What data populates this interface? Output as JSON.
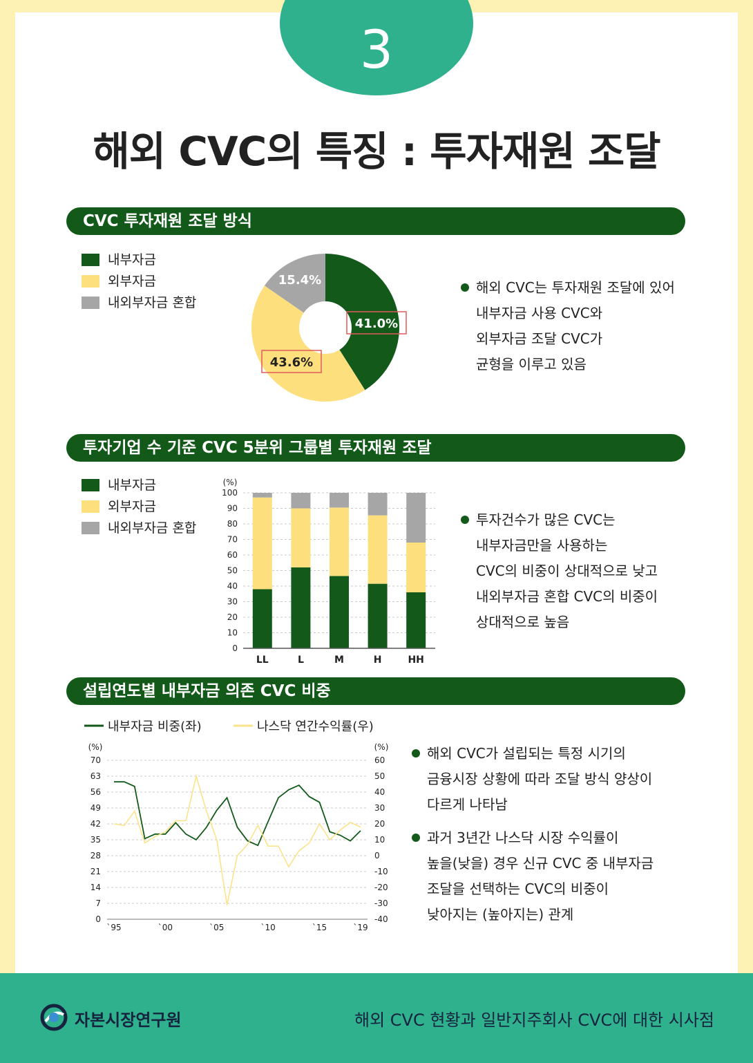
{
  "header": {
    "number": "3",
    "title": "해외 CVC의 특징 : 투자재원 조달"
  },
  "section1": {
    "title": "CVC 투자재원 조달 방식",
    "bullet": [
      "해외 CVC는 투자재원 조달에 있어",
      "내부자금 사용 CVC와",
      "외부자금 조달 CVC가",
      "균형을 이루고 있음"
    ]
  },
  "section2": {
    "title": "투자기업 수 기준 CVC 5분위 그룹별 투자재원 조달",
    "bullet": [
      "투자건수가 많은 CVC는",
      "내부자금만을 사용하는",
      "CVC의 비중이 상대적으로 낮고",
      "내외부자금 혼합 CVC의 비중이",
      "상대적으로 높음"
    ]
  },
  "section3": {
    "title": "설립연도별 내부자금 의존 CVC 비중",
    "bullets": [
      [
        "해외 CVC가 설립되는 특정 시기의",
        "금융시장 상황에 따라 조달 방식 양상이",
        "다르게 나타남"
      ],
      [
        "과거 3년간 나스닥 시장 수익률이",
        "높을(낮을) 경우 신규 CVC 중 내부자금",
        "조달을 선택하는 CVC의 비중이",
        "낮아지는 (높아지는) 관계"
      ]
    ]
  },
  "legend_funding": [
    {
      "label": "내부자금",
      "color": "#135a1a"
    },
    {
      "label": "외부자금",
      "color": "#fddf7e"
    },
    {
      "label": "내외부자금 혼합",
      "color": "#a6a6a6"
    }
  ],
  "chart_data": [
    {
      "type": "pie",
      "labels": [
        "내부자금",
        "외부자금",
        "내외부자금 혼합"
      ],
      "values": [
        41.0,
        43.6,
        15.4
      ],
      "value_labels": [
        "41.0%",
        "43.6%",
        "15.4%"
      ],
      "colors": [
        "#135a1a",
        "#fddf7e",
        "#a6a6a6"
      ],
      "donut": true,
      "highlighted": [
        "41.0%",
        "43.6%"
      ]
    },
    {
      "type": "bar",
      "stacked": true,
      "categories": [
        "LL",
        "L",
        "M",
        "H",
        "HH"
      ],
      "series": [
        {
          "name": "내부자금",
          "color": "#135a1a",
          "values": [
            38,
            52,
            46.5,
            41.5,
            36
          ]
        },
        {
          "name": "외부자금",
          "color": "#fddf7e",
          "values": [
            59,
            38,
            44,
            44,
            32
          ]
        },
        {
          "name": "내외부자금 혼합",
          "color": "#a6a6a6",
          "values": [
            3,
            10,
            9.5,
            14.5,
            32
          ]
        }
      ],
      "ylabel": "(%)",
      "ylim": [
        0,
        100
      ],
      "yticks": [
        0,
        10,
        20,
        30,
        40,
        50,
        60,
        70,
        80,
        90,
        100
      ],
      "grid": true
    },
    {
      "type": "line",
      "x": [
        1995,
        1996,
        1997,
        1998,
        1999,
        2000,
        2001,
        2002,
        2003,
        2004,
        2005,
        2006,
        2007,
        2008,
        2009,
        2010,
        2011,
        2012,
        2013,
        2014,
        2015,
        2016,
        2017,
        2018,
        2019
      ],
      "xtick_labels": [
        {
          "x": 1995,
          "label": "`95"
        },
        {
          "x": 2000,
          "label": "`00"
        },
        {
          "x": 2005,
          "label": "`05"
        },
        {
          "x": 2010,
          "label": "`10"
        },
        {
          "x": 2015,
          "label": "`15"
        },
        {
          "x": 2019,
          "label": "`19"
        }
      ],
      "series": [
        {
          "name": "내부자금 비중(좌)",
          "axis": "left",
          "color": "#135a1a",
          "values": [
            60.5,
            60.5,
            58.5,
            35.5,
            37.5,
            37.5,
            42.5,
            37.5,
            35,
            40.5,
            48,
            53.5,
            40.5,
            34.5,
            32.5,
            43,
            53.5,
            57,
            59,
            54,
            51.5,
            38.5,
            37,
            34.5,
            39
          ]
        },
        {
          "name": "나스닥 연간수익률(우)",
          "axis": "right",
          "color": "#fbe38a",
          "values": [
            20,
            19,
            28,
            8,
            12,
            15,
            22,
            22,
            50,
            28,
            10,
            -31,
            0,
            7,
            19,
            6,
            6,
            -7,
            3,
            8,
            20,
            10,
            16,
            21,
            18
          ]
        }
      ],
      "y_left": {
        "label": "(%)",
        "ylim": [
          0,
          70
        ],
        "ticks": [
          0,
          7,
          14,
          21,
          28,
          35,
          42,
          49,
          56,
          63,
          70
        ]
      },
      "y_right": {
        "label": "(%)",
        "ylim": [
          -40,
          60
        ],
        "ticks": [
          -40,
          -30,
          -20,
          -10,
          0,
          10,
          20,
          30,
          40,
          50,
          60
        ]
      },
      "grid": true,
      "legend_position": "top-left"
    }
  ],
  "footer": {
    "org": "자본시장연구원",
    "publication": "해외 CVC 현황과  일반지주회사 CVC에  대한 시사점"
  }
}
